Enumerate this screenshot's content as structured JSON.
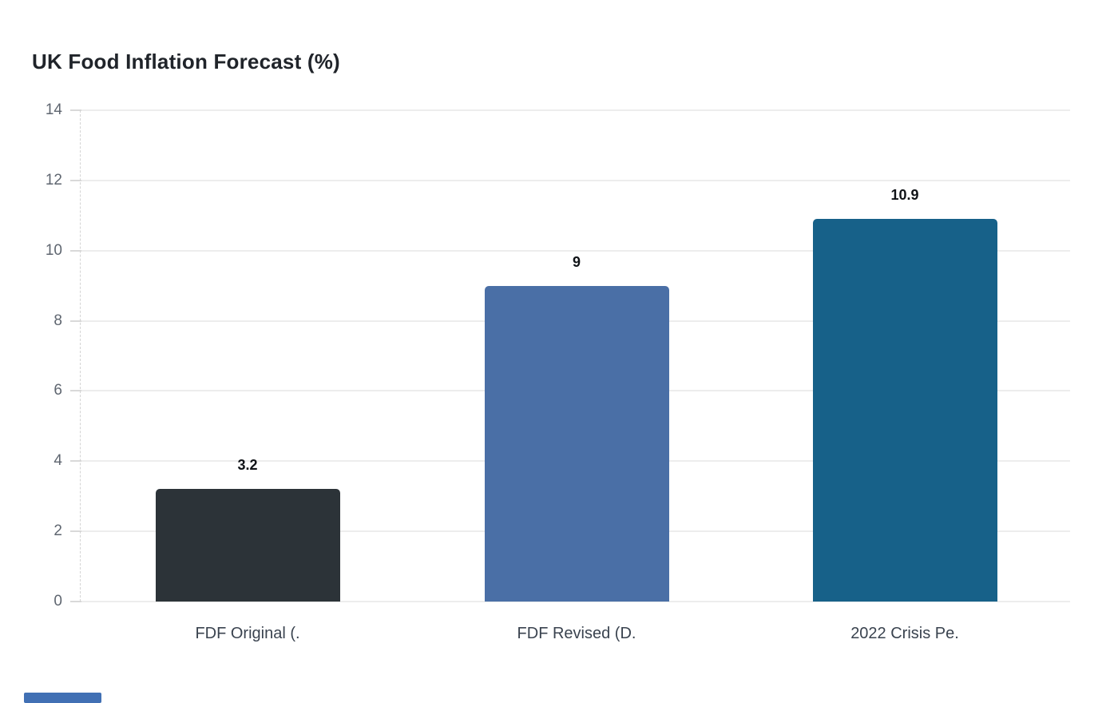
{
  "chart_data": {
    "type": "bar",
    "title": "UK Food Inflation Forecast (%)",
    "categories": [
      "FDF Original (.",
      "FDF Revised (D.",
      "2022 Crisis Pe."
    ],
    "values": [
      3.2,
      9,
      10.9
    ],
    "value_labels": [
      "3.2",
      "9",
      "10.9"
    ],
    "bar_colors": [
      "#2c3338",
      "#4a6fa6",
      "#176189"
    ],
    "yticks": [
      0,
      2,
      4,
      6,
      8,
      10,
      12,
      14
    ],
    "ylim": [
      0,
      14
    ],
    "xlabel": "",
    "ylabel": "",
    "grid": "horizontal",
    "legend_position": "none"
  },
  "colors": {
    "background": "#ffffff",
    "gridline": "#ededed",
    "axis_line": "#d4d4d4",
    "ytick_label": "#5f6670",
    "xtick_label": "#3a434f",
    "title": "#20242a",
    "value_label": "#101317",
    "accent_bar": "#4170b4"
  }
}
